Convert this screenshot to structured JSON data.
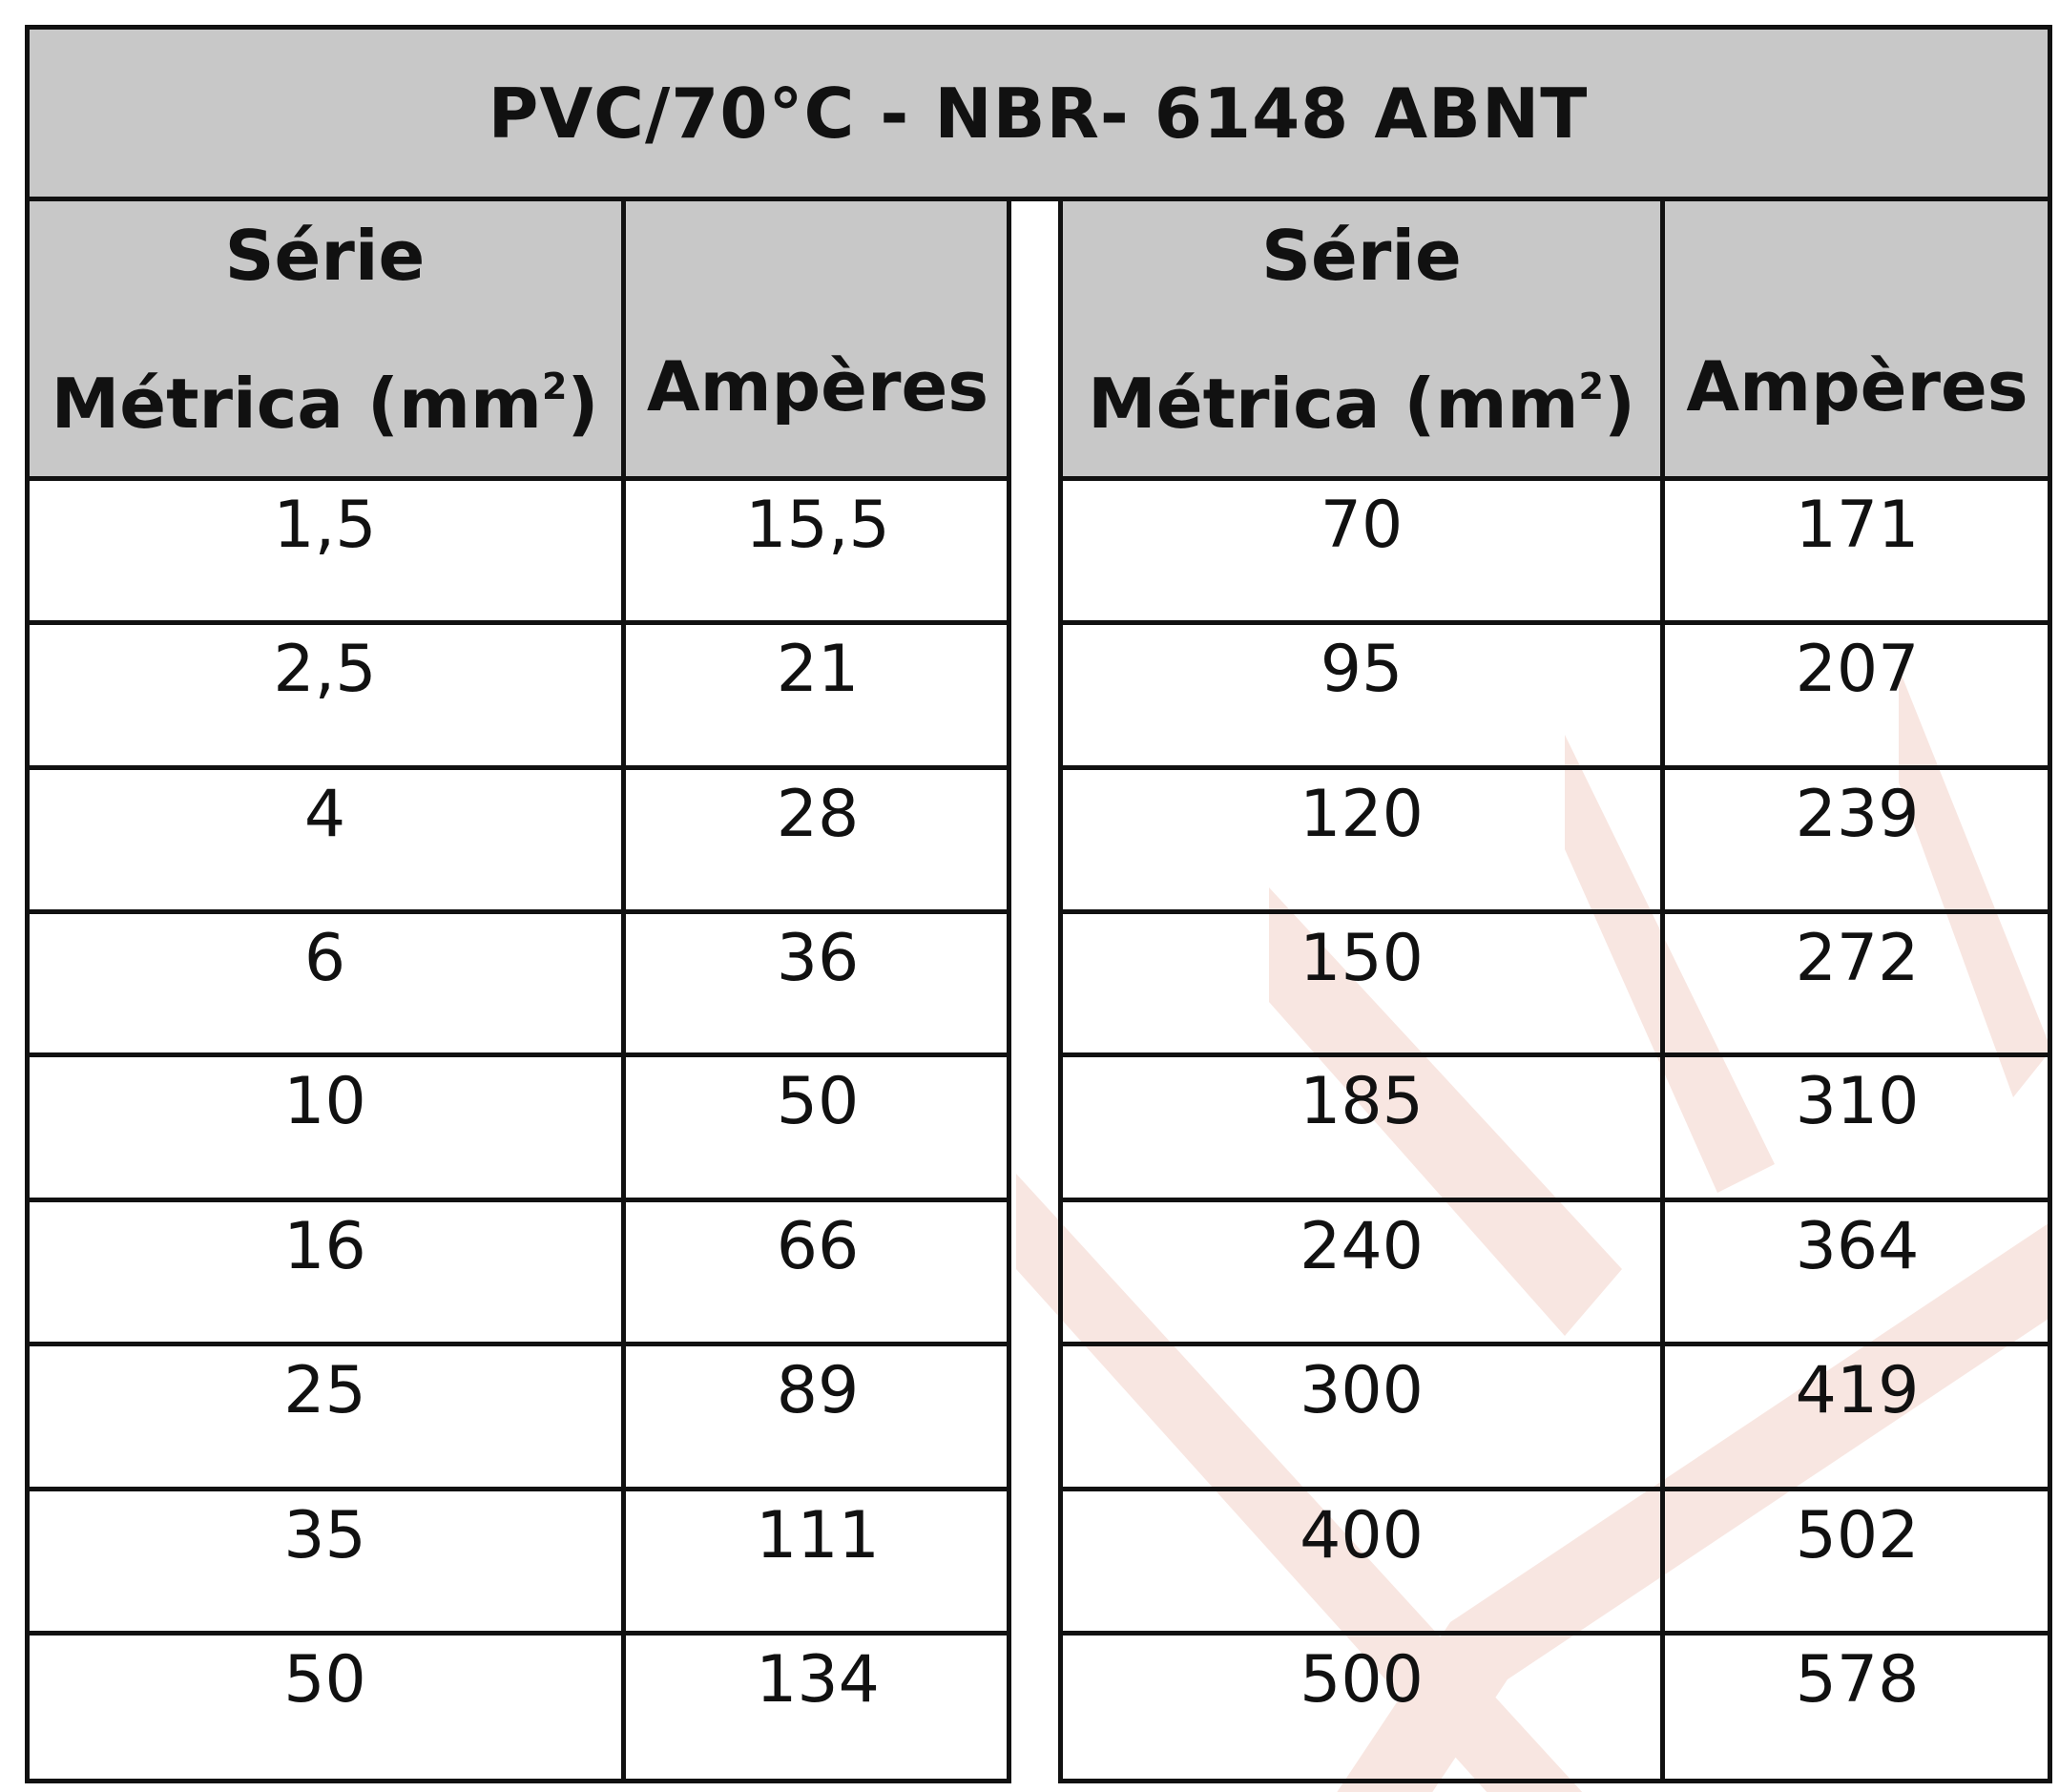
{
  "title": "PVC/70°C - NBR- 6148 ABNT",
  "headers": {
    "left_serie": "Série",
    "left_metrica": "Métrica (mm",
    "left_metrica_exp": "2",
    "left_metrica_close": ")",
    "left_amperes": "Ampères",
    "right_serie": "Série",
    "right_metrica": "Métrica (mm",
    "right_metrica_exp": "2",
    "right_metrica_close": ")",
    "right_amperes": "Ampères"
  },
  "left_rows": [
    {
      "metrica": "1,5",
      "amperes": "15,5"
    },
    {
      "metrica": "2,5",
      "amperes": "21"
    },
    {
      "metrica": "4",
      "amperes": "28"
    },
    {
      "metrica": "6",
      "amperes": "36"
    },
    {
      "metrica": "10",
      "amperes": "50"
    },
    {
      "metrica": "16",
      "amperes": "66"
    },
    {
      "metrica": "25",
      "amperes": "89"
    },
    {
      "metrica": "35",
      "amperes": "111"
    },
    {
      "metrica": "50",
      "amperes": "134"
    }
  ],
  "right_rows": [
    {
      "metrica": "70",
      "amperes": "171"
    },
    {
      "metrica": "95",
      "amperes": "207"
    },
    {
      "metrica": "120",
      "amperes": "239"
    },
    {
      "metrica": "150",
      "amperes": "272"
    },
    {
      "metrica": "185",
      "amperes": "310"
    },
    {
      "metrica": "240",
      "amperes": "364"
    },
    {
      "metrica": "300",
      "amperes": "419"
    },
    {
      "metrica": "400",
      "amperes": "502"
    },
    {
      "metrica": "500",
      "amperes": "578"
    }
  ],
  "colors": {
    "header_fill": "#c8c8c8",
    "rule": "#111111",
    "watermark": "#f8e6e1"
  }
}
